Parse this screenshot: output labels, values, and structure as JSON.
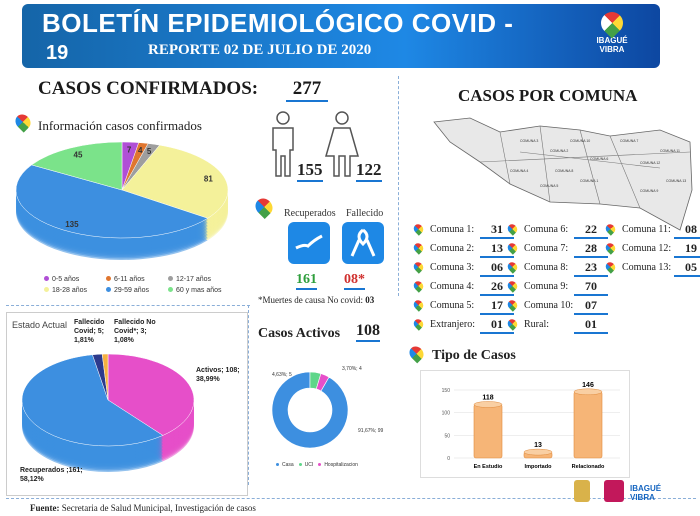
{
  "header": {
    "title": "BOLETÍN EPIDEMIOLÓGICO COVID -",
    "title_num": "19",
    "subtitle": "REPORTE 02 DE JULIO DE 2020",
    "logo_text_1": "IBAGUÉ",
    "logo_text_2": "VIBRA"
  },
  "confirmados": {
    "label": "CASOS CONFIRMADOS:",
    "value": "277",
    "info_title": "Información casos confirmados",
    "male": "155",
    "female": "122"
  },
  "age_chart": {
    "type": "pie",
    "slices": [
      {
        "label": "0-5 años",
        "value": 7,
        "color": "#b04fd6"
      },
      {
        "label": "6-11 años",
        "value": 4,
        "color": "#e0762f"
      },
      {
        "label": "12-17 años",
        "value": 5,
        "color": "#9e9e9e"
      },
      {
        "label": "18-28 años",
        "value": 81,
        "color": "#f4f19a"
      },
      {
        "label": "29-59 años",
        "value": 135,
        "color": "#3d8fe0"
      },
      {
        "label": "60 y mas años",
        "value": 45,
        "color": "#7be38a"
      }
    ]
  },
  "recovery": {
    "recuperados_label": "Recuperados",
    "fallecido_label": "Fallecido",
    "recuperados": "161",
    "fallecidos": "08*",
    "note": "*Muertes de causa No covid:",
    "note_value": "03"
  },
  "estado": {
    "title": "Estado Actual",
    "slices": [
      {
        "label": "Activos; 108; 38,99%",
        "value": 108,
        "color": "#e64fc9"
      },
      {
        "label": "Recuperados ;161; 58,12%",
        "value": 161,
        "color": "#3d8fe0"
      },
      {
        "label": "Fallecido Covid; 5; 1,81%",
        "value": 5,
        "color": "#2d3a8c"
      },
      {
        "label": "Fallecido No Covid*; 3; 1,08%",
        "value": 3,
        "color": "#f5b041"
      }
    ]
  },
  "activos": {
    "title": "Casos Activos",
    "value": "108",
    "slices": [
      {
        "label": "Casa",
        "value": 99,
        "color": "#3d8fe0",
        "text": "91,67%; 99"
      },
      {
        "label": "UCI",
        "value": 5,
        "color": "#5fd68a",
        "text": "4,63%; 5"
      },
      {
        "label": "Hospitalizacion",
        "value": 4,
        "color": "#e64fc9",
        "text": "3,70%; 4"
      }
    ]
  },
  "comunas": {
    "title": "CASOS POR COMUNA",
    "map_labels": [
      "COMUNA 1",
      "COMUNA 2",
      "COMUNA 3",
      "COMUNA 4",
      "COMUNA 5",
      "COMUNA 6",
      "COMUNA 7",
      "COMUNA 8",
      "COMUNA 9",
      "COMUNA 10",
      "COMUNA 11",
      "COMUNA 12",
      "COMUNA 13"
    ],
    "col1": [
      {
        "label": "Comuna 1:",
        "value": "31"
      },
      {
        "label": "Comuna 2:",
        "value": "13"
      },
      {
        "label": "Comuna 3:",
        "value": "06"
      },
      {
        "label": "Comuna 4:",
        "value": "26"
      },
      {
        "label": "Comuna 5:",
        "value": "17"
      },
      {
        "label": "Extranjero:",
        "value": "01"
      }
    ],
    "col2": [
      {
        "label": "Comuna 6:",
        "value": "22"
      },
      {
        "label": "Comuna 7:",
        "value": "28"
      },
      {
        "label": "Comuna 8:",
        "value": "23"
      },
      {
        "label": "Comuna 9:",
        "value": "70"
      },
      {
        "label": "Comuna 10:",
        "value": "07"
      },
      {
        "label": "Rural:",
        "value": "01"
      }
    ],
    "col3": [
      {
        "label": "Comuna 11:",
        "value": "08"
      },
      {
        "label": "Comuna 12:",
        "value": "19"
      },
      {
        "label": "Comuna 13:",
        "value": "05"
      }
    ]
  },
  "tipo": {
    "title": "Tipo de Casos",
    "chart_data": {
      "type": "bar",
      "categories": [
        "En Estudio",
        "Importado",
        "Relacionado"
      ],
      "values": [
        118,
        13,
        146
      ],
      "ylim": [
        0,
        150
      ],
      "yticks": [
        "150",
        "100",
        "50",
        "0"
      ]
    }
  },
  "footer": {
    "label": "Fuente:",
    "text": "Secretaria de Salud Municipal, Investigación de casos"
  }
}
